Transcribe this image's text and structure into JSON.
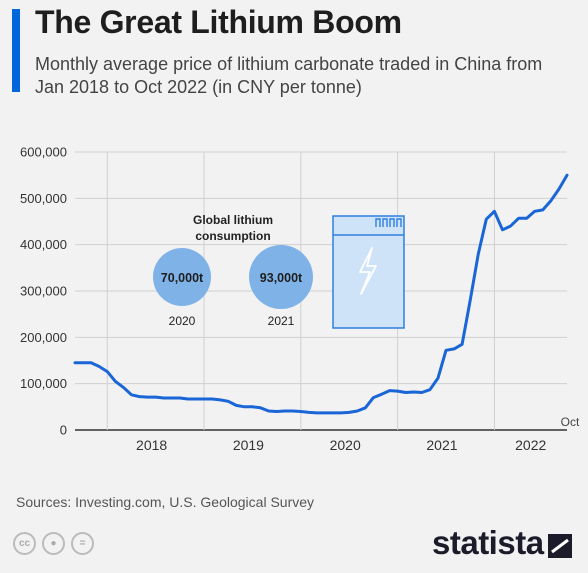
{
  "title": "The Great Lithium Boom",
  "subtitle": "Monthly average price of lithium carbonate traded in China from Jan 2018 to Oct 2022 (in CNY per tonne)",
  "source": "Sources: Investing.com, U.S. Geological Survey",
  "brand": "statista",
  "colors": {
    "accent": "#0066dd",
    "line": "#1a66d6",
    "bubble": "#7fb3e8",
    "battery": "#cfe3f8"
  },
  "icons": [
    "cc-icon",
    "person-icon",
    "equals-icon",
    "battery-icon",
    "lightning-icon"
  ],
  "inset": {
    "heading": "Global lithium consumption",
    "items": [
      {
        "value": "70,000t",
        "year": "2020"
      },
      {
        "value": "93,000t",
        "year": "2021"
      }
    ]
  },
  "chart_data": {
    "type": "line",
    "title": "The Great Lithium Boom",
    "xlabel": "",
    "ylabel": "",
    "x_start": "2017-09",
    "x_end": "2022-10",
    "ylim": [
      0,
      600000
    ],
    "y_ticks": [
      0,
      100000,
      200000,
      300000,
      400000,
      500000,
      600000
    ],
    "y_tick_labels": [
      "0",
      "100,000",
      "200,000",
      "300,000",
      "400,000",
      "500,000",
      "600,000"
    ],
    "x_tick_labels": [
      "2018",
      "2019",
      "2020",
      "2021",
      "2022"
    ],
    "end_label": "Oct",
    "grid": true,
    "series": [
      {
        "values": [
          [
            "2017-09",
            145000
          ],
          [
            "2017-10",
            145000
          ],
          [
            "2017-11",
            145000
          ],
          [
            "2017-12",
            137000
          ],
          [
            "2018-01",
            126000
          ],
          [
            "2018-02",
            105000
          ],
          [
            "2018-03",
            92000
          ],
          [
            "2018-04",
            76000
          ],
          [
            "2018-05",
            72000
          ],
          [
            "2018-06",
            71000
          ],
          [
            "2018-07",
            71000
          ],
          [
            "2018-08",
            69000
          ],
          [
            "2018-09",
            69000
          ],
          [
            "2018-10",
            69000
          ],
          [
            "2018-11",
            67000
          ],
          [
            "2018-12",
            67000
          ],
          [
            "2019-01",
            67000
          ],
          [
            "2019-02",
            67000
          ],
          [
            "2019-03",
            65000
          ],
          [
            "2019-04",
            62000
          ],
          [
            "2019-05",
            53000
          ],
          [
            "2019-06",
            50000
          ],
          [
            "2019-07",
            50000
          ],
          [
            "2019-08",
            48000
          ],
          [
            "2019-09",
            41000
          ],
          [
            "2019-10",
            40000
          ],
          [
            "2019-11",
            41000
          ],
          [
            "2019-12",
            41000
          ],
          [
            "2020-01",
            40000
          ],
          [
            "2020-02",
            38000
          ],
          [
            "2020-03",
            37000
          ],
          [
            "2020-04",
            37000
          ],
          [
            "2020-05",
            37000
          ],
          [
            "2020-06",
            37000
          ],
          [
            "2020-07",
            38000
          ],
          [
            "2020-08",
            41000
          ],
          [
            "2020-09",
            48000
          ],
          [
            "2020-10",
            70000
          ],
          [
            "2020-11",
            77000
          ],
          [
            "2020-12",
            85000
          ],
          [
            "2021-01",
            84000
          ],
          [
            "2021-02",
            81000
          ],
          [
            "2021-03",
            82000
          ],
          [
            "2021-04",
            81000
          ],
          [
            "2021-05",
            87000
          ],
          [
            "2021-06",
            112000
          ],
          [
            "2021-07",
            172000
          ],
          [
            "2021-08",
            175000
          ],
          [
            "2021-09",
            185000
          ],
          [
            "2021-10",
            280000
          ],
          [
            "2021-11",
            380000
          ],
          [
            "2021-12",
            455000
          ],
          [
            "2022-01",
            472000
          ],
          [
            "2022-02",
            432000
          ],
          [
            "2022-03",
            440000
          ],
          [
            "2022-04",
            457000
          ],
          [
            "2022-05",
            457000
          ],
          [
            "2022-06",
            472000
          ],
          [
            "2022-07",
            475000
          ],
          [
            "2022-08",
            495000
          ],
          [
            "2022-09",
            520000
          ],
          [
            "2022-10",
            550000
          ]
        ]
      }
    ]
  }
}
